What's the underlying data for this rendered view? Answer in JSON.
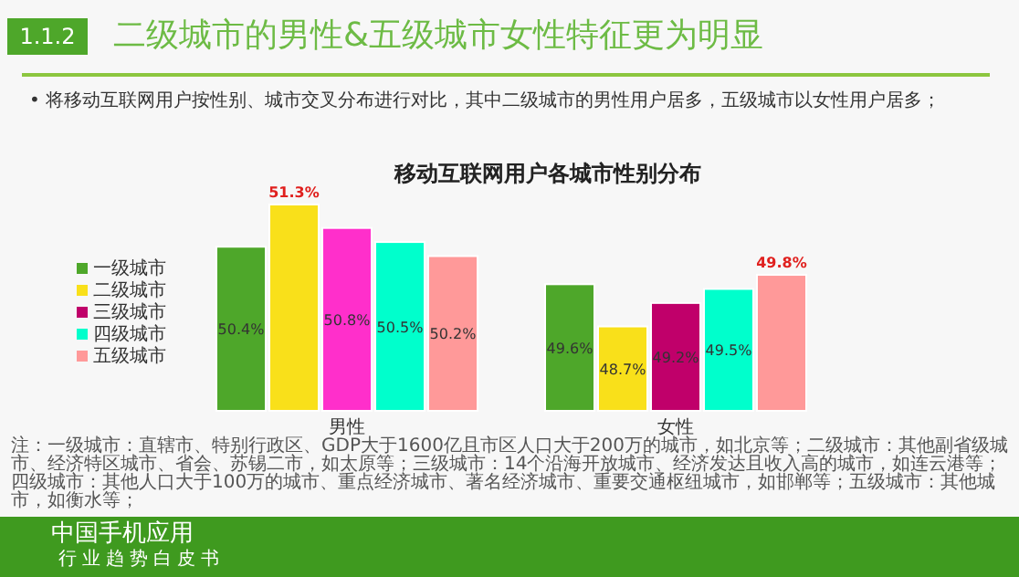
{
  "chart_data": {
    "type": "bar",
    "title": "移动互联网用户各城市性别分布",
    "categories": [
      "男性",
      "女性"
    ],
    "series": [
      {
        "name": "一级城市",
        "color": "#4ea72a",
        "values": [
          50.4,
          49.6
        ],
        "value_labels": [
          "50.4%",
          "49.6%"
        ]
      },
      {
        "name": "二级城市",
        "color": "#f9e01a",
        "values": [
          51.3,
          48.7
        ],
        "value_labels": [
          "51.3%",
          "48.7%"
        ]
      },
      {
        "name": "三级城市",
        "color": "#c0006a",
        "colors": [
          "#ff2fcb",
          "#c0006a"
        ],
        "values": [
          50.8,
          49.2
        ],
        "value_labels": [
          "50.8%",
          "49.2%"
        ]
      },
      {
        "name": "四级城市",
        "color": "#00ffcc",
        "values": [
          50.5,
          49.5
        ],
        "value_labels": [
          "50.5%",
          "49.5%"
        ]
      },
      {
        "name": "五级城市",
        "color": "#ff9999",
        "values": [
          50.2,
          49.8
        ],
        "value_labels": [
          "50.2%",
          "49.8%"
        ]
      }
    ],
    "ylim": [
      46.9,
      51.3
    ],
    "tick_labels": false,
    "legend": "left",
    "grid": false,
    "annotations": [
      "1.1.2",
      "二级城市的男性&五级城市女性特征更为明显",
      "•  将移动互联网用户按性别、城市交叉分布进行对比，其中二级城市的男性用户居多，五级城市以女性用户居多；",
      "注：一级城市：直辖市、特别行政区、GDP大于1600亿且市区人口大于200万的城市，如北京等；二级城市：其他副省级城市、经济特区城市、省会、苏锡二市，如太原等；三级城市：14个沿海开放城市、经济发达且收入高的城市，如连云港等；四级城市：其他人口大于100万的城市、重点经济城市、著名经济城市、重要交通枢纽城市，如邯郸等；五级城市：其他城市，如衡水等；",
      "中国手机应用",
      "行业趋势白皮书"
    ]
  }
}
